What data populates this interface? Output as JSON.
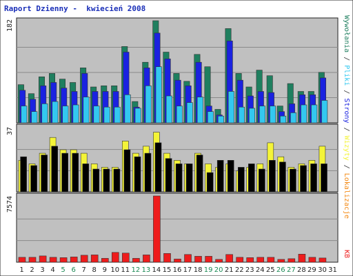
{
  "title": "Raport Dzienny -  kwiecień 2008",
  "colors": {
    "visits": "#1f7f5f",
    "pages": "#1a22e0",
    "files": "#33c8f0",
    "sites": "#f4f438",
    "hits_loc": "#f48a14",
    "kb": "#ee1c1c",
    "weekend_label": "#1b8a55",
    "weekday_label": "#222222"
  },
  "legend": {
    "visits": "Wywołania",
    "files": "Pliki",
    "pages": "Strony",
    "sites": "Wizyty",
    "locations": "Lokalizacje",
    "kb": "KB",
    "separator": " / "
  },
  "chart_data": [
    {
      "type": "bar",
      "name": "hits-panel",
      "ymax_label": "182",
      "ylim": [
        0,
        182
      ],
      "categories": [
        "1",
        "2",
        "3",
        "4",
        "5",
        "6",
        "7",
        "8",
        "9",
        "10",
        "11",
        "12",
        "13",
        "14",
        "15",
        "16",
        "17",
        "18",
        "19",
        "20",
        "21",
        "22",
        "23",
        "24",
        "25",
        "26",
        "27",
        "28",
        "29",
        "30",
        "31"
      ],
      "weekend_days": [
        5,
        6,
        12,
        13,
        19,
        20,
        26,
        27
      ],
      "series": [
        {
          "key": "visits",
          "values": [
            68,
            52,
            82,
            88,
            78,
            72,
            98,
            64,
            66,
            66,
            136,
            38,
            108,
            182,
            126,
            88,
            74,
            122,
            100,
            24,
            168,
            88,
            64,
            94,
            84,
            30,
            70,
            56,
            56,
            90,
            0
          ]
        },
        {
          "key": "pages",
          "values": [
            58,
            42,
            66,
            72,
            62,
            56,
            88,
            56,
            56,
            56,
            126,
            28,
            98,
            160,
            114,
            76,
            66,
            108,
            30,
            14,
            146,
            76,
            48,
            56,
            54,
            20,
            34,
            50,
            50,
            80,
            0
          ]
        },
        {
          "key": "files",
          "values": [
            30,
            20,
            34,
            38,
            30,
            32,
            46,
            30,
            28,
            28,
            50,
            26,
            66,
            100,
            48,
            30,
            36,
            46,
            20,
            12,
            56,
            28,
            26,
            30,
            30,
            12,
            18,
            32,
            32,
            40,
            0
          ]
        }
      ]
    },
    {
      "type": "bar",
      "name": "locations-panel",
      "ymax_label": "37",
      "ylim": [
        0,
        37
      ],
      "categories": [
        "1",
        "2",
        "3",
        "4",
        "5",
        "6",
        "7",
        "8",
        "9",
        "10",
        "11",
        "12",
        "13",
        "14",
        "15",
        "16",
        "17",
        "18",
        "19",
        "20",
        "21",
        "22",
        "23",
        "24",
        "25",
        "26",
        "27",
        "28",
        "29",
        "30",
        "31"
      ],
      "series": [
        {
          "key": "sites",
          "values": [
            18,
            16,
            22,
            31,
            24,
            24,
            22,
            16,
            14,
            14,
            29,
            22,
            26,
            34,
            22,
            18,
            16,
            22,
            16,
            14,
            16,
            12,
            14,
            16,
            28,
            20,
            14,
            16,
            18,
            26,
            0
          ]
        },
        {
          "key": "locations",
          "values": [
            20,
            15,
            21,
            26,
            22,
            22,
            16,
            13,
            13,
            13,
            24,
            20,
            22,
            28,
            19,
            16,
            16,
            21,
            11,
            18,
            18,
            14,
            16,
            13,
            18,
            17,
            13,
            15,
            16,
            16,
            0
          ]
        }
      ]
    },
    {
      "type": "bar",
      "name": "kb-panel",
      "ymax_label": "7574",
      "ylim": [
        0,
        7574
      ],
      "categories": [
        "1",
        "2",
        "3",
        "4",
        "5",
        "6",
        "7",
        "8",
        "9",
        "10",
        "11",
        "12",
        "13",
        "14",
        "15",
        "16",
        "17",
        "18",
        "19",
        "20",
        "21",
        "22",
        "23",
        "24",
        "25",
        "26",
        "27",
        "28",
        "29",
        "30",
        "31"
      ],
      "series": [
        {
          "key": "kb",
          "values": [
            560,
            560,
            720,
            560,
            520,
            600,
            800,
            840,
            440,
            1120,
            1040,
            440,
            840,
            7574,
            1000,
            360,
            880,
            680,
            680,
            320,
            880,
            560,
            520,
            560,
            560,
            320,
            400,
            920,
            560,
            480,
            0
          ]
        }
      ]
    }
  ]
}
